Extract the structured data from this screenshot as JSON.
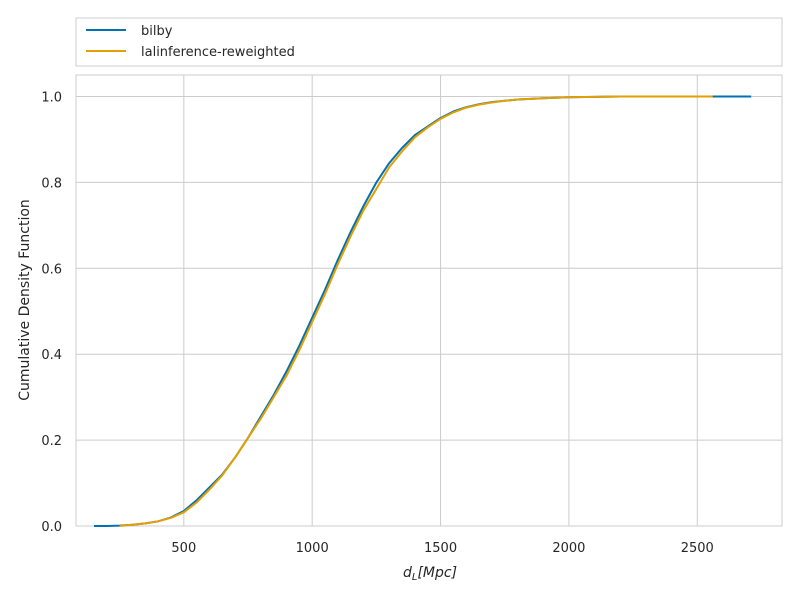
{
  "chart_data": {
    "type": "line",
    "title": "",
    "xlabel_main": "d",
    "xlabel_sub": "L",
    "xlabel_rest": "[Mpc]",
    "ylabel": "Cumulative Density Function",
    "xlim": [
      80,
      2830
    ],
    "ylim": [
      0,
      1.05
    ],
    "xticks": [
      500,
      1000,
      1500,
      2000,
      2500
    ],
    "xtick_labels": [
      "500",
      "1000",
      "1500",
      "2000",
      "2500"
    ],
    "yticks": [
      0.0,
      0.2,
      0.4,
      0.6,
      0.8,
      1.0
    ],
    "ytick_labels": [
      "0.0",
      "0.2",
      "0.4",
      "0.6",
      "0.8",
      "1.0"
    ],
    "grid": true,
    "legend_position": "top, outside above plot",
    "series": [
      {
        "name": "bilby",
        "color": "#0072b2",
        "x": [
          150,
          200,
          250,
          300,
          350,
          400,
          450,
          500,
          550,
          600,
          650,
          700,
          750,
          800,
          850,
          900,
          950,
          1000,
          1050,
          1100,
          1150,
          1200,
          1250,
          1300,
          1350,
          1400,
          1450,
          1500,
          1550,
          1600,
          1650,
          1700,
          1750,
          1800,
          1900,
          2000,
          2100,
          2200,
          2300,
          2400,
          2500,
          2600,
          2710
        ],
        "y": [
          0.0,
          0.0,
          0.001,
          0.003,
          0.006,
          0.011,
          0.02,
          0.035,
          0.06,
          0.09,
          0.12,
          0.16,
          0.205,
          0.255,
          0.305,
          0.36,
          0.42,
          0.485,
          0.55,
          0.62,
          0.685,
          0.745,
          0.8,
          0.845,
          0.88,
          0.91,
          0.93,
          0.95,
          0.965,
          0.975,
          0.982,
          0.987,
          0.99,
          0.993,
          0.996,
          0.998,
          0.999,
          1.0,
          1.0,
          1.0,
          1.0,
          1.0,
          1.0
        ]
      },
      {
        "name": "lalinference-reweighted",
        "color": "#e69f00",
        "x": [
          250,
          300,
          350,
          400,
          450,
          500,
          550,
          600,
          650,
          700,
          750,
          800,
          850,
          900,
          950,
          1000,
          1050,
          1100,
          1150,
          1200,
          1250,
          1300,
          1350,
          1400,
          1450,
          1500,
          1550,
          1600,
          1650,
          1700,
          1750,
          1800,
          1900,
          2000,
          2100,
          2200,
          2300,
          2400,
          2500,
          2560
        ],
        "y": [
          0.0,
          0.003,
          0.006,
          0.011,
          0.019,
          0.032,
          0.055,
          0.085,
          0.118,
          0.16,
          0.205,
          0.25,
          0.3,
          0.35,
          0.41,
          0.475,
          0.54,
          0.61,
          0.675,
          0.735,
          0.785,
          0.835,
          0.872,
          0.905,
          0.928,
          0.948,
          0.963,
          0.974,
          0.981,
          0.986,
          0.99,
          0.993,
          0.996,
          0.998,
          0.999,
          1.0,
          1.0,
          1.0,
          1.0,
          1.0
        ]
      }
    ]
  }
}
